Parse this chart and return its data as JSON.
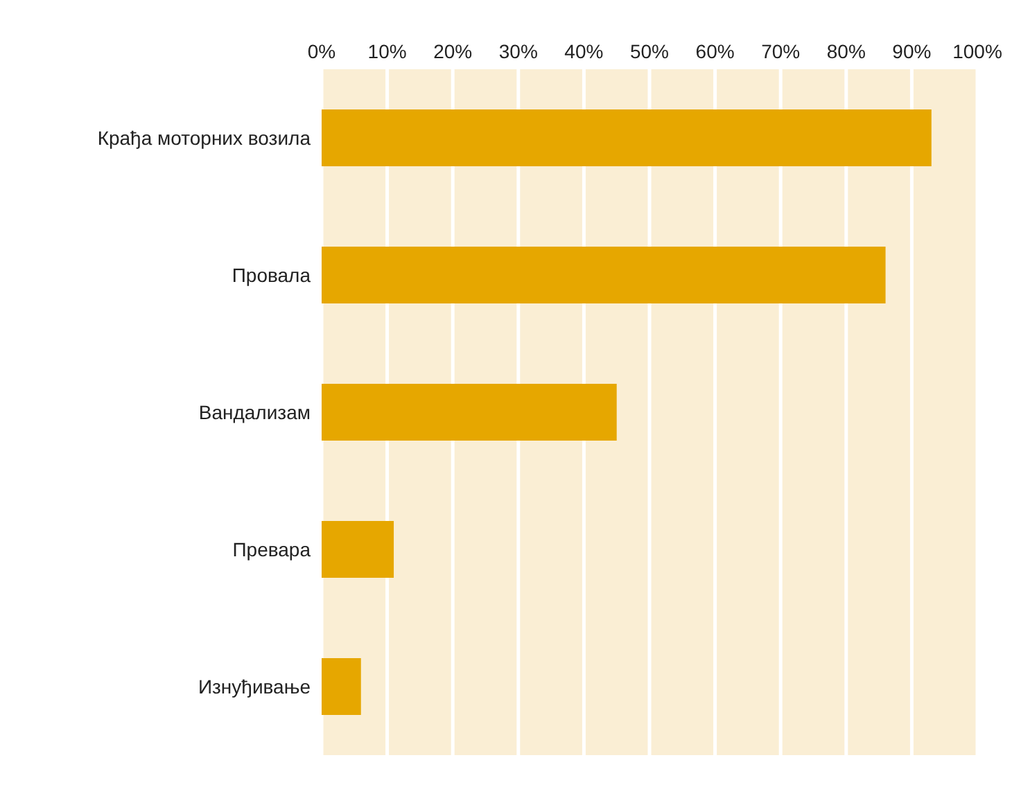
{
  "chart_data": {
    "type": "bar",
    "orientation": "horizontal",
    "categories": [
      "Крађа моторних возила",
      "Провала",
      "Вандализам",
      "Превара",
      "Изнуђивање"
    ],
    "values": [
      93,
      86,
      45,
      11,
      6
    ],
    "color": "#e6a700",
    "xlim": [
      0,
      100
    ],
    "xticks": [
      {
        "value": 0,
        "label": "0%"
      },
      {
        "value": 10,
        "label": "10%"
      },
      {
        "value": 20,
        "label": "20%"
      },
      {
        "value": 30,
        "label": "30%"
      },
      {
        "value": 40,
        "label": "40%"
      },
      {
        "value": 50,
        "label": "50%"
      },
      {
        "value": 60,
        "label": "60%"
      },
      {
        "value": 70,
        "label": "70%"
      },
      {
        "value": 80,
        "label": "80%"
      },
      {
        "value": 90,
        "label": "90%"
      },
      {
        "value": 100,
        "label": "100%"
      }
    ],
    "grid": "x",
    "legend": false
  }
}
